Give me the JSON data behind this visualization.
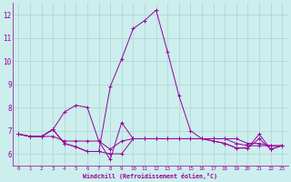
{
  "xlabel": "Windchill (Refroidissement éolien,°C)",
  "background_color": "#cceeed",
  "grid_color": "#aad4d2",
  "line_color": "#990099",
  "xlim": [
    -0.5,
    23.5
  ],
  "ylim": [
    5.5,
    12.5
  ],
  "yticks": [
    6,
    7,
    8,
    9,
    10,
    11,
    12
  ],
  "xticks": [
    0,
    1,
    2,
    3,
    4,
    5,
    6,
    7,
    8,
    9,
    10,
    11,
    12,
    13,
    14,
    15,
    16,
    17,
    18,
    19,
    20,
    21,
    22,
    23
  ],
  "series": [
    [
      6.85,
      6.75,
      6.75,
      6.75,
      6.55,
      6.55,
      6.55,
      6.55,
      5.75,
      7.35,
      6.65,
      6.65,
      6.65,
      6.65,
      6.65,
      6.65,
      6.65,
      6.65,
      6.65,
      6.65,
      6.45,
      6.45,
      6.35,
      6.35
    ],
    [
      6.85,
      6.75,
      6.75,
      7.05,
      6.45,
      6.3,
      6.1,
      6.1,
      6.0,
      6.0,
      6.65,
      6.65,
      6.65,
      6.65,
      6.65,
      6.65,
      6.65,
      6.65,
      6.65,
      6.45,
      6.35,
      6.35,
      6.35,
      6.35
    ],
    [
      6.85,
      6.75,
      6.75,
      7.05,
      7.8,
      8.1,
      8.0,
      6.55,
      6.2,
      6.55,
      6.65,
      6.65,
      6.65,
      6.65,
      6.65,
      6.65,
      6.65,
      6.55,
      6.45,
      6.25,
      6.25,
      6.65,
      6.2,
      6.35
    ],
    [
      6.85,
      6.75,
      6.75,
      7.05,
      6.45,
      6.3,
      6.1,
      6.1,
      8.9,
      10.1,
      11.4,
      11.75,
      12.2,
      10.4,
      8.5,
      7.0,
      6.65,
      6.55,
      6.45,
      6.25,
      6.25,
      6.85,
      6.2,
      6.35
    ]
  ]
}
